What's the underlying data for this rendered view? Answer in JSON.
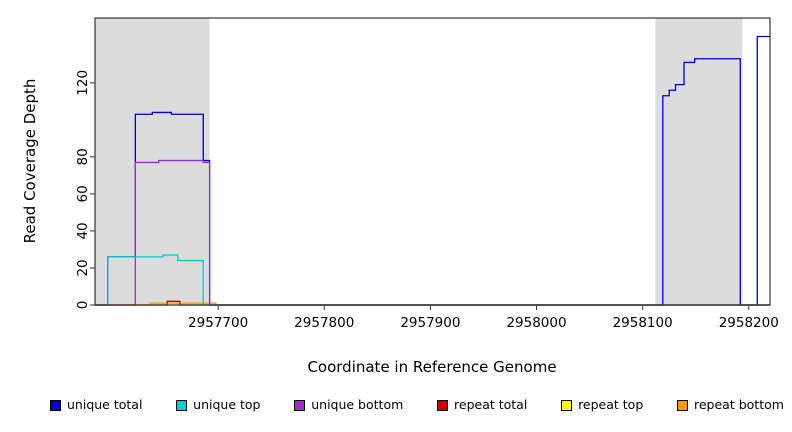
{
  "figure": {
    "background": "#FFFFFF",
    "axis_color": "#333333",
    "band_color": "#DCDCDC"
  },
  "chart_data": {
    "type": "line",
    "subtype": "step-coverage",
    "title": "",
    "xlabel": "Coordinate in Reference Genome",
    "ylabel": "Read Coverage Depth",
    "xlim": [
      2957584,
      2958220
    ],
    "ylim": [
      0,
      155
    ],
    "x_ticks": [
      2957700,
      2957800,
      2957900,
      2958000,
      2958100,
      2958200
    ],
    "y_ticks": [
      0,
      20,
      40,
      60,
      80,
      120
    ],
    "grid": false,
    "legend_position": "bottom",
    "shaded_regions": [
      {
        "x0": 2957584,
        "x1": 2957692
      },
      {
        "x0": 2958112,
        "x1": 2958194
      }
    ],
    "series": [
      {
        "name": "repeat top",
        "color": "#FFFF00",
        "points": [
          [
            2957584,
            0
          ]
        ]
      },
      {
        "name": "repeat bottom",
        "color": "#FF9900",
        "points": [
          [
            2957584,
            0
          ],
          [
            2957636,
            1
          ],
          [
            2957698,
            0
          ]
        ]
      },
      {
        "name": "repeat total",
        "color": "#CC0000",
        "points": [
          [
            2957584,
            0
          ],
          [
            2957652,
            2
          ],
          [
            2957664,
            0
          ]
        ]
      },
      {
        "name": "unique total",
        "color": "#0000CC",
        "points": [
          [
            2957584,
            0
          ],
          [
            2957596,
            26
          ],
          [
            2957622,
            103
          ],
          [
            2957638,
            104
          ],
          [
            2957656,
            103
          ],
          [
            2957686,
            78
          ],
          [
            2957692,
            0
          ],
          [
            2958119,
            113
          ],
          [
            2958125,
            116
          ],
          [
            2958131,
            119
          ],
          [
            2958139,
            131
          ],
          [
            2958149,
            133
          ],
          [
            2958192,
            0
          ],
          [
            2958208,
            145
          ]
        ]
      },
      {
        "name": "unique bottom",
        "color": "#9933CC",
        "points": [
          [
            2957584,
            0
          ],
          [
            2957622,
            77
          ],
          [
            2957644,
            78
          ],
          [
            2957686,
            77
          ],
          [
            2957692,
            0
          ]
        ]
      },
      {
        "name": "unique top",
        "color": "#00CCCC",
        "points": [
          [
            2957584,
            0
          ],
          [
            2957596,
            26
          ],
          [
            2957648,
            27
          ],
          [
            2957662,
            24
          ],
          [
            2957686,
            0
          ]
        ]
      }
    ],
    "legend": {
      "items": [
        {
          "label": "unique total",
          "color": "#0000CC"
        },
        {
          "label": "unique top",
          "color": "#00CCCC"
        },
        {
          "label": "unique bottom",
          "color": "#9933CC"
        },
        {
          "label": "repeat total",
          "color": "#CC0000"
        },
        {
          "label": "repeat top",
          "color": "#FFFF00"
        },
        {
          "label": "repeat bottom",
          "color": "#FF9900"
        }
      ]
    }
  }
}
